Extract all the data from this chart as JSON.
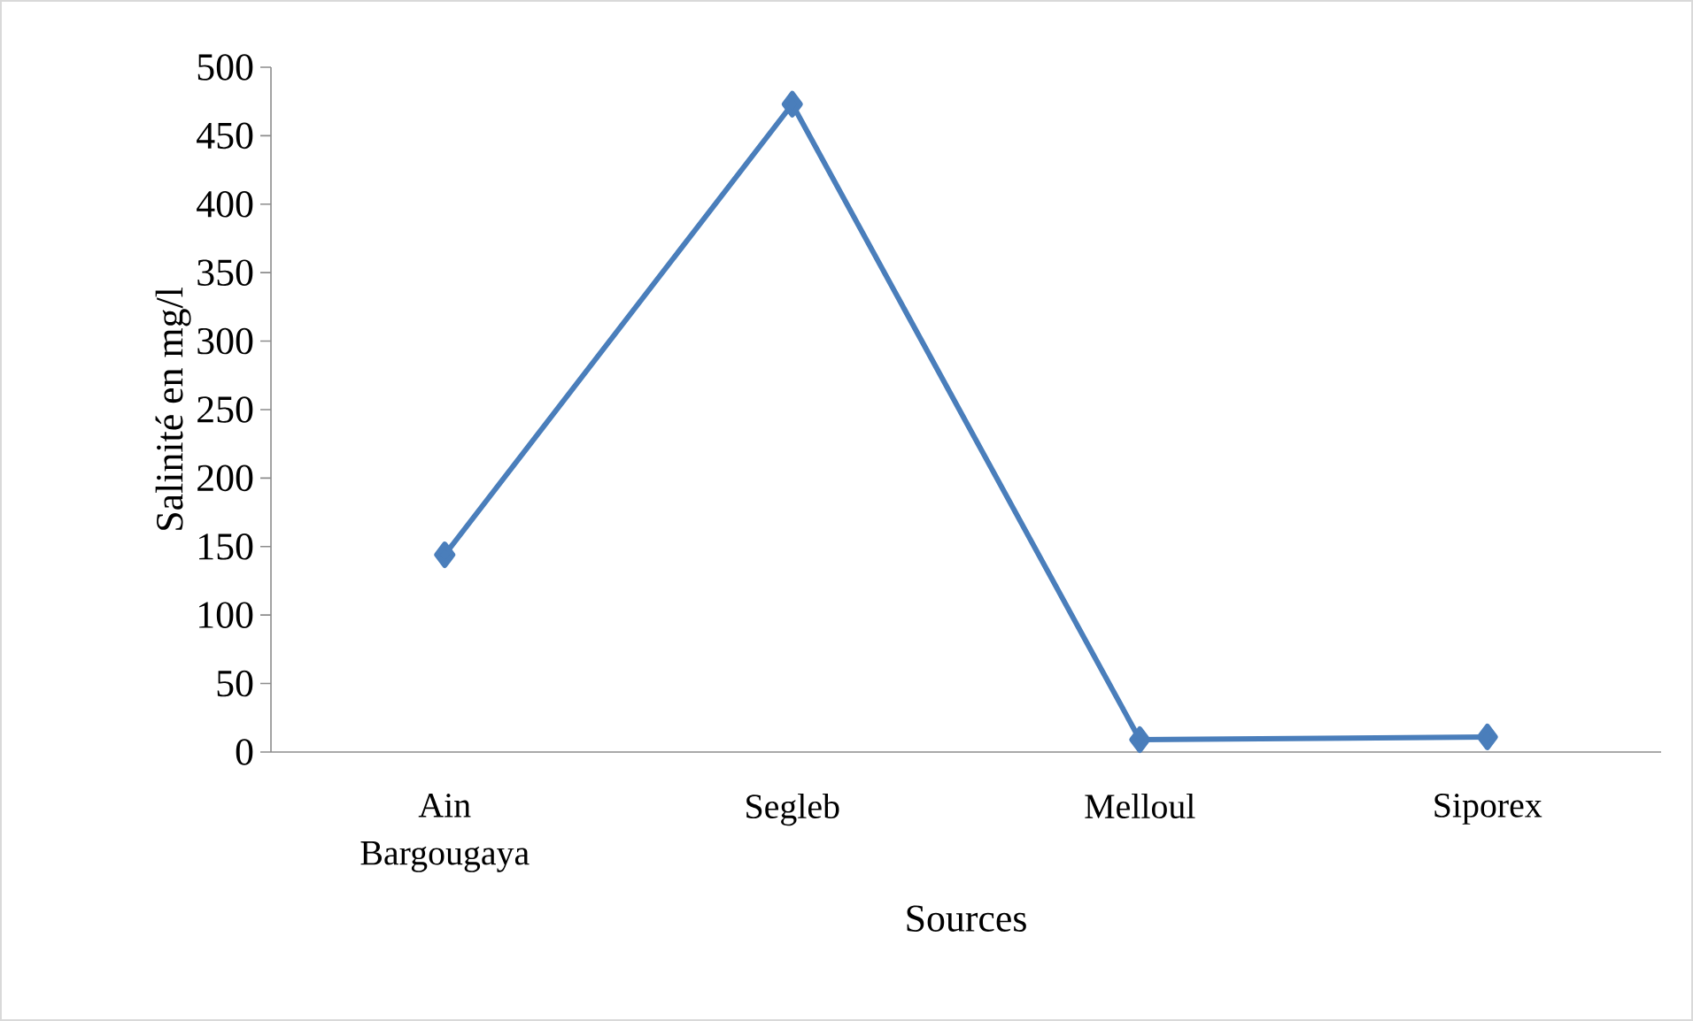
{
  "chart_data": {
    "type": "line",
    "xlabel": "Sources",
    "ylabel": "Salinité en mg/l",
    "categories": [
      "Ain Bargougaya",
      "Segleb",
      "Melloul",
      "Siporex"
    ],
    "values": [
      144,
      473,
      9,
      11
    ],
    "color": "#4a7ebb",
    "marker": "diamond",
    "line_style": "solid",
    "ylim": [
      0,
      500
    ],
    "yticks": [
      0,
      50,
      100,
      150,
      200,
      250,
      300,
      350,
      400,
      450,
      500
    ]
  }
}
